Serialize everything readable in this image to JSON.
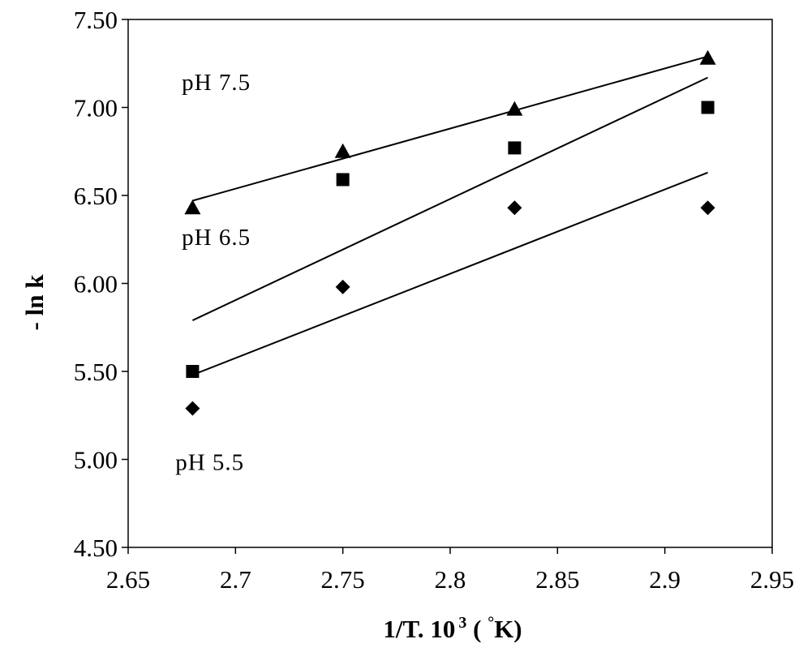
{
  "chart_data": {
    "type": "scatter",
    "title": "",
    "xlabel": {
      "prefix": "1/T. 10",
      "superscript": "3",
      "paren_open": " ( ",
      "degree": "°",
      "suffix": "K)"
    },
    "ylabel": "- ln k",
    "xlim": [
      2.65,
      2.95
    ],
    "ylim": [
      4.5,
      7.5
    ],
    "x_ticks": [
      2.65,
      2.7,
      2.75,
      2.8,
      2.85,
      2.9,
      2.95
    ],
    "x_tick_labels": [
      "2.65",
      "2.7",
      "2.75",
      "2.8",
      "2.85",
      "2.9",
      "2.95"
    ],
    "y_ticks": [
      4.5,
      5.0,
      5.5,
      6.0,
      6.5,
      7.0,
      7.5
    ],
    "y_tick_labels": [
      "4.50",
      "5.00",
      "5.50",
      "6.00",
      "6.50",
      "7.00",
      "7.50"
    ],
    "grid": false,
    "legend": "none",
    "series": [
      {
        "marker": "triangle",
        "x": [
          2.68,
          2.75,
          2.83,
          2.92
        ],
        "y": [
          6.43,
          6.75,
          6.99,
          7.28
        ],
        "trendline": {
          "x": [
            2.68,
            2.92
          ],
          "y": [
            6.47,
            7.29
          ]
        }
      },
      {
        "marker": "square",
        "x": [
          2.68,
          2.75,
          2.83,
          2.92
        ],
        "y": [
          5.5,
          6.59,
          6.77,
          7.0
        ],
        "trendline": {
          "x": [
            2.68,
            2.92
          ],
          "y": [
            5.79,
            7.17
          ]
        }
      },
      {
        "marker": "diamond",
        "x": [
          2.68,
          2.75,
          2.83,
          2.92
        ],
        "y": [
          5.29,
          5.98,
          6.43,
          6.43
        ],
        "trendline": {
          "x": [
            2.68,
            2.92
          ],
          "y": [
            5.48,
            6.63
          ]
        }
      }
    ],
    "annotations": [
      {
        "text": "pH 7.5",
        "x": 2.675,
        "y": 7.1
      },
      {
        "text": "pH 6.5",
        "x": 2.675,
        "y": 6.22
      },
      {
        "text": "pH 5.5",
        "x": 2.672,
        "y": 4.94
      }
    ],
    "colors": {
      "marks": "#000000",
      "axis": "#000000",
      "background": "#ffffff"
    }
  }
}
